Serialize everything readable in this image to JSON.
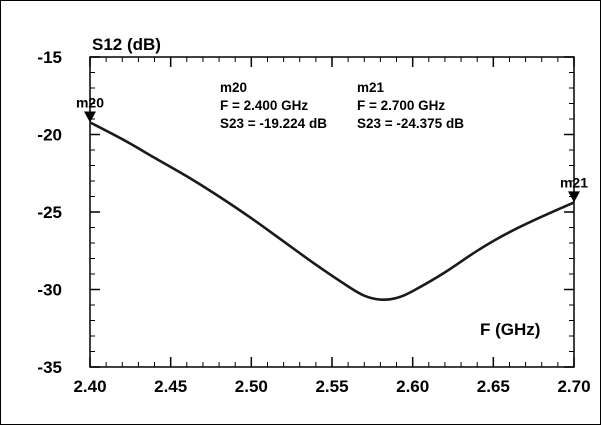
{
  "chart_data": {
    "type": "line",
    "ylabel": "S12 (dB)",
    "xlabel": "F (GHz)",
    "xlim": [
      2.4,
      2.7
    ],
    "ylim": [
      -35,
      -15
    ],
    "x_ticks": [
      "2.40",
      "2.45",
      "2.50",
      "2.55",
      "2.60",
      "2.65",
      "2.70"
    ],
    "y_ticks": [
      "-15",
      "-20",
      "-25",
      "-30",
      "-35"
    ],
    "grid": false,
    "series": [
      {
        "x": [
          2.4,
          2.42,
          2.44,
          2.46,
          2.48,
          2.5,
          2.52,
          2.54,
          2.56,
          2.57,
          2.58,
          2.59,
          2.6,
          2.62,
          2.64,
          2.66,
          2.68,
          2.7
        ],
        "y": [
          -19.22,
          -20.3,
          -21.5,
          -22.7,
          -24.0,
          -25.4,
          -26.9,
          -28.4,
          -29.8,
          -30.4,
          -30.65,
          -30.55,
          -30.1,
          -28.9,
          -27.5,
          -26.3,
          -25.3,
          -24.38
        ]
      }
    ],
    "markers": [
      {
        "name": "m20",
        "x": 2.4,
        "y": -19.224,
        "line1": "m20",
        "line2": "F = 2.400 GHz",
        "line3": "S23 = -19.224 dB"
      },
      {
        "name": "m21",
        "x": 2.7,
        "y": -24.375,
        "line1": "m21",
        "line2": "F = 2.700 GHz",
        "line3": "S23 = -24.375 dB"
      }
    ],
    "colors": {
      "line": "#1a1a1a",
      "axis": "#000000",
      "background": "#ffffff"
    }
  }
}
